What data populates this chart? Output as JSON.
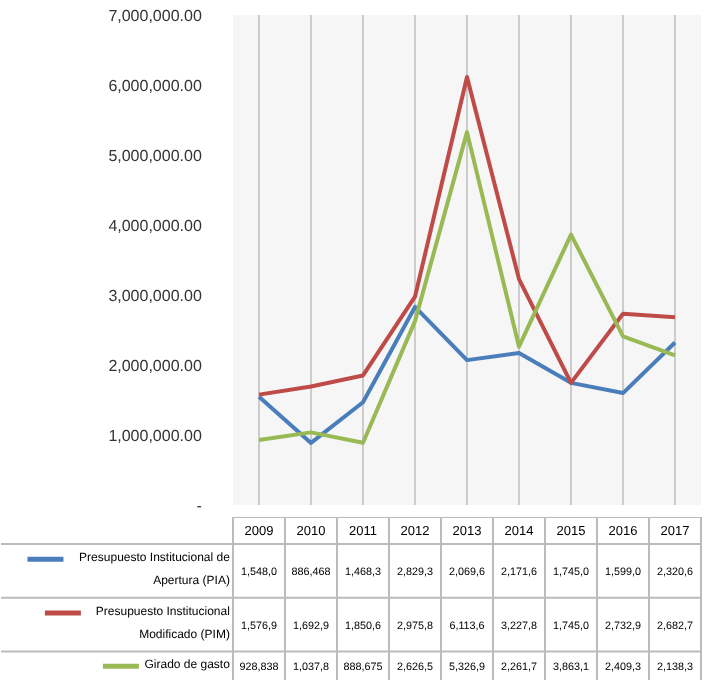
{
  "chart_data": {
    "type": "line",
    "categories": [
      "2009",
      "2010",
      "2011",
      "2012",
      "2013",
      "2014",
      "2015",
      "2016",
      "2017"
    ],
    "series": [
      {
        "name": "Presupuesto Institucional de Apertura (PIA)",
        "color": "#4a7ebb",
        "values": [
          1548000,
          886468,
          1468300,
          2829300,
          2069600,
          2171600,
          1745000,
          1599000,
          2320600
        ],
        "value_labels": [
          "1,548,0",
          "886,468",
          "1,468,3",
          "2,829,3",
          "2,069,6",
          "2,171,6",
          "1,745,0",
          "1,599,0",
          "2,320,6"
        ]
      },
      {
        "name": "Presupuesto Institucional Modificado (PIM)",
        "color": "#be4b48",
        "values": [
          1576900,
          1692900,
          1850600,
          2975800,
          6113600,
          3227800,
          1745000,
          2732900,
          2682700
        ],
        "value_labels": [
          "1,576,9",
          "1,692,9",
          "1,850,6",
          "2,975,8",
          "6,113,6",
          "3,227,8",
          "1,745,0",
          "2,732,9",
          "2,682,7"
        ]
      },
      {
        "name": "Girado de gasto",
        "color": "#98b954",
        "values": [
          928838,
          1037800,
          888675,
          2626500,
          5326900,
          2261700,
          3863100,
          2409300,
          2138300
        ],
        "value_labels": [
          "928,838",
          "1,037,8",
          "888,675",
          "2,626,5",
          "5,326,9",
          "2,261,7",
          "3,863,1",
          "2,409,3",
          "2,138,3"
        ]
      }
    ],
    "ylim": [
      0,
      7000000
    ],
    "yticks": [
      {
        "value": 0,
        "label": "-"
      },
      {
        "value": 1000000,
        "label": "1,000,000.00"
      },
      {
        "value": 2000000,
        "label": "2,000,000.00"
      },
      {
        "value": 3000000,
        "label": "3,000,000.00"
      },
      {
        "value": 4000000,
        "label": "4,000,000.00"
      },
      {
        "value": 5000000,
        "label": "5,000,000.00"
      },
      {
        "value": 6000000,
        "label": "6,000,000.00"
      },
      {
        "value": 7000000,
        "label": "7,000,000.00"
      }
    ],
    "grid": "x",
    "legend": "bottom",
    "marker": "none",
    "line_style": "solid"
  }
}
